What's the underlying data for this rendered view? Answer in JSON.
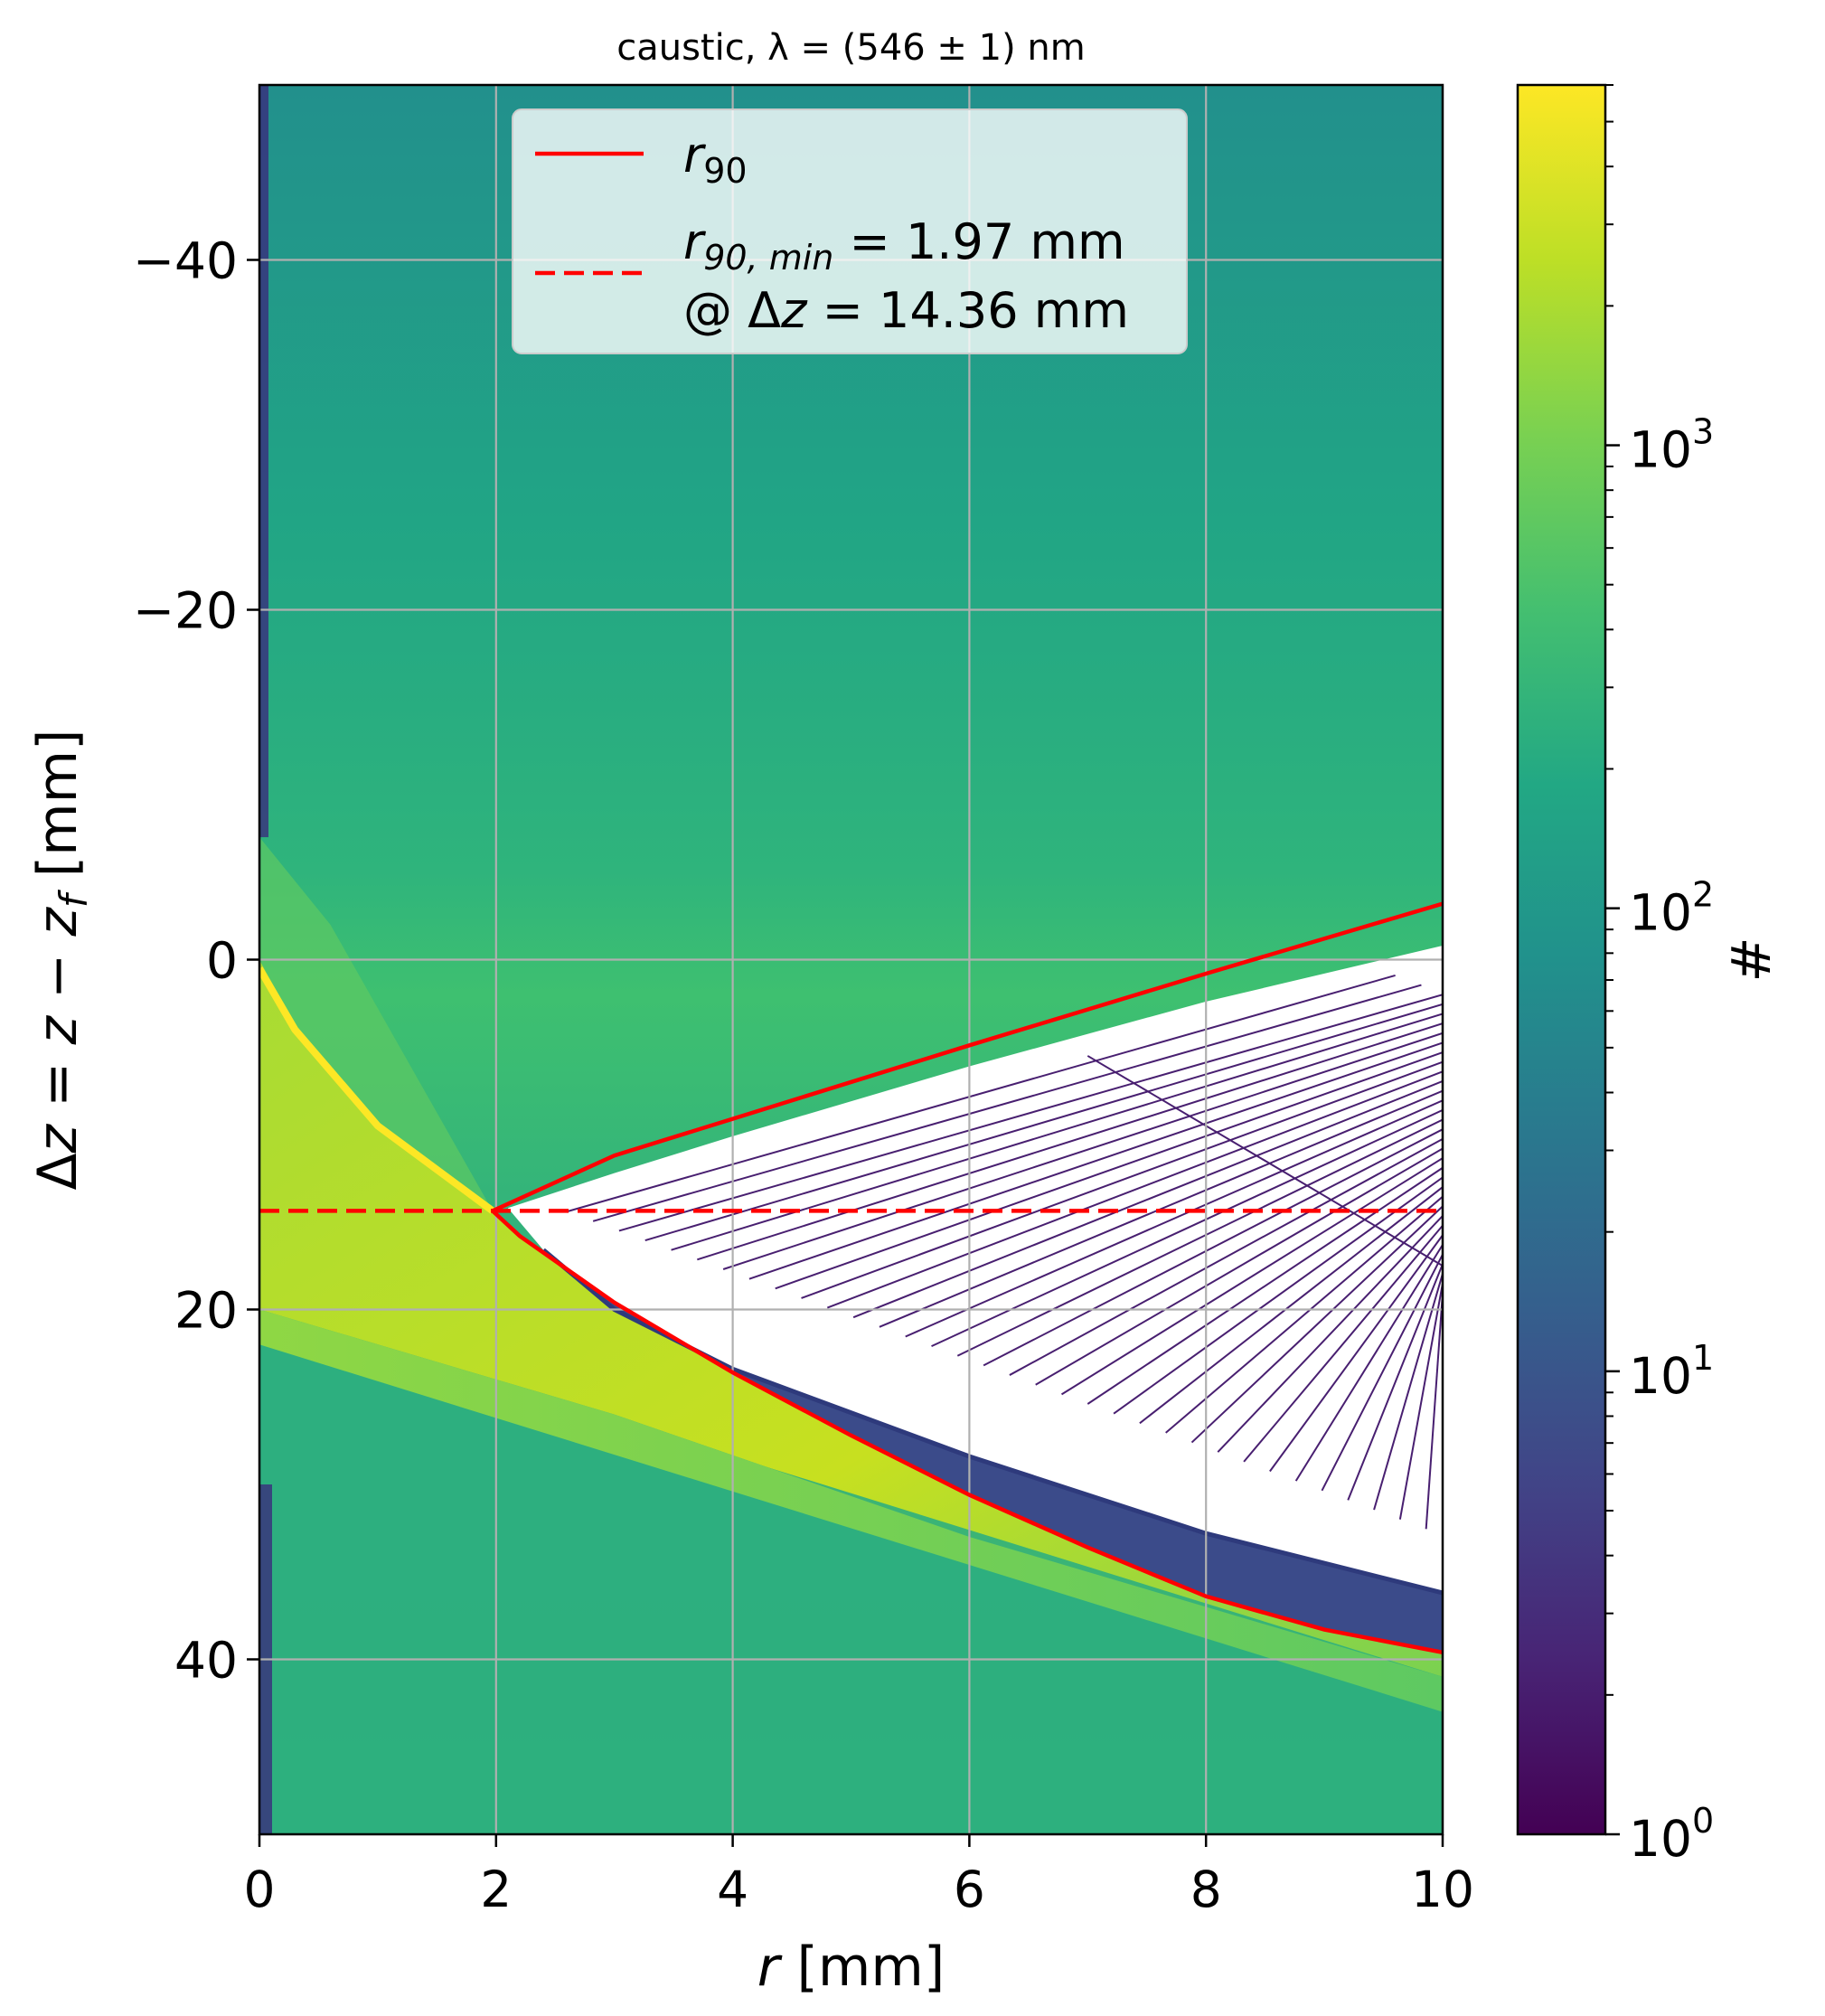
{
  "chart_data": {
    "type": "heatmap",
    "title": "caustic, λ = (546 ± 1) nm",
    "xlabel": "r [mm]",
    "ylabel": "Δz = z − z_f [mm]",
    "xlim": [
      0,
      10
    ],
    "ylim": [
      50,
      -50
    ],
    "y_inverted": true,
    "x_ticks": [
      "0",
      "2",
      "4",
      "6",
      "8",
      "10"
    ],
    "y_ticks": [
      "−40",
      "−20",
      "0",
      "20",
      "40"
    ],
    "grid": true,
    "legend_position": "upper-center",
    "colormap": "viridis",
    "colorbar": {
      "label": "#",
      "scale": "log",
      "range": [
        1,
        6000
      ],
      "ticks": [
        {
          "base": "10",
          "exp": "0",
          "value": 1
        },
        {
          "base": "10",
          "exp": "1",
          "value": 10
        },
        {
          "base": "10",
          "exp": "2",
          "value": 100
        },
        {
          "base": "10",
          "exp": "3",
          "value": 1000
        }
      ]
    },
    "series": [
      {
        "name": "r_90",
        "legend_main": "r",
        "legend_sub": "90",
        "style": "solid",
        "color": "#ff0000",
        "points": [
          [
            10,
            -3.2
          ],
          [
            8,
            0.8
          ],
          [
            6,
            4.9
          ],
          [
            4,
            9.1
          ],
          [
            3,
            11.2
          ],
          [
            1.97,
            14.36
          ],
          [
            2.2,
            15.8
          ],
          [
            3,
            19.6
          ],
          [
            4,
            23.6
          ],
          [
            5,
            27.2
          ],
          [
            6,
            30.6
          ],
          [
            7,
            33.6
          ],
          [
            8,
            36.4
          ],
          [
            9,
            38.3
          ],
          [
            10,
            39.6
          ]
        ]
      },
      {
        "name": "r_90,min = 1.97 mm @ Δz = 14.36 mm",
        "legend_main": "r",
        "legend_sub": "90, min",
        "legend_rest": " = 1.97 mm",
        "legend_line2_pre": "@ Δ",
        "legend_line2_var": "z",
        "legend_line2_post": " = 14.36 mm",
        "style": "dashed",
        "color": "#ff0000",
        "y": 14.36,
        "x_range": [
          0,
          10
        ]
      }
    ],
    "r90_min_mm": 1.97,
    "dz_at_min_mm": 14.36
  }
}
